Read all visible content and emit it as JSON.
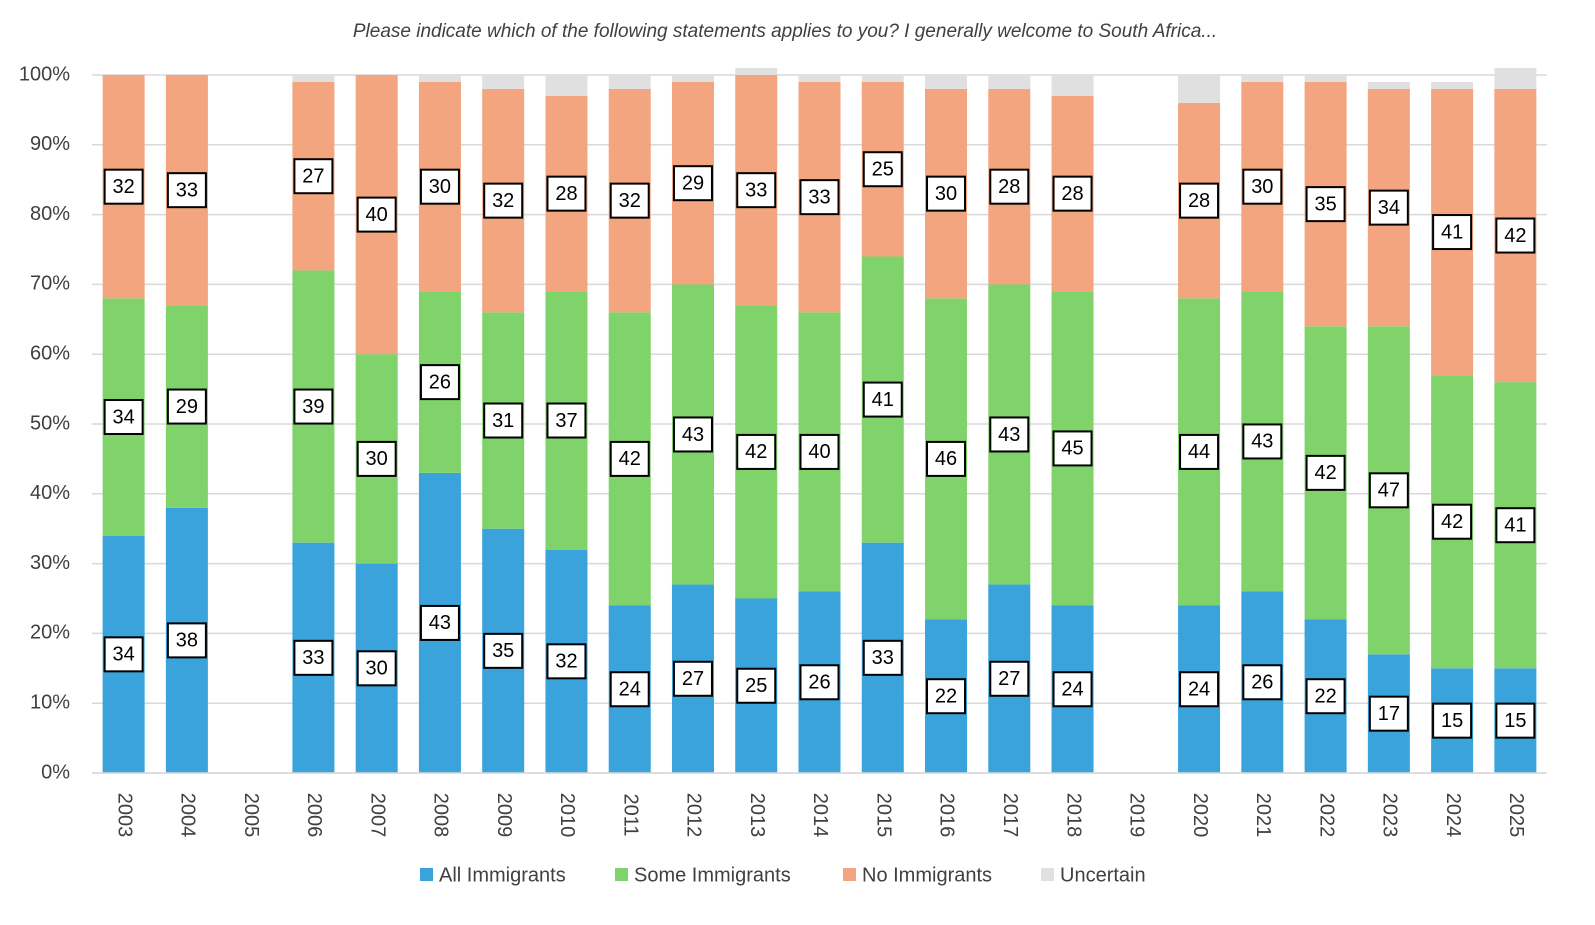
{
  "chart_data": {
    "type": "stacked-bar",
    "title": "Please indicate which of the following statements applies to you? I generally welcome to South Africa...",
    "categories": [
      "2003",
      "2004",
      "2005",
      "2006",
      "2007",
      "2008",
      "2009",
      "2010",
      "2011",
      "2012",
      "2013",
      "2014",
      "2015",
      "2016",
      "2017",
      "2018",
      "2019",
      "2020",
      "2021",
      "2022",
      "2023",
      "2024",
      "2025"
    ],
    "series": [
      {
        "name": "All Immigrants",
        "color": "#3aa3dc",
        "labeled": true,
        "values": [
          34,
          38,
          null,
          33,
          30,
          43,
          35,
          32,
          24,
          27,
          25,
          26,
          33,
          22,
          27,
          24,
          null,
          24,
          26,
          22,
          17,
          15,
          15
        ]
      },
      {
        "name": "Some Immigrants",
        "color": "#7fd36a",
        "labeled": true,
        "values": [
          34,
          29,
          null,
          39,
          30,
          26,
          31,
          37,
          42,
          43,
          42,
          40,
          41,
          46,
          43,
          45,
          null,
          44,
          43,
          42,
          47,
          42,
          41
        ]
      },
      {
        "name": "No Immigrants",
        "color": "#f2a57e",
        "labeled": true,
        "values": [
          32,
          33,
          null,
          27,
          40,
          30,
          32,
          28,
          32,
          29,
          33,
          33,
          25,
          30,
          28,
          28,
          null,
          28,
          30,
          35,
          34,
          41,
          42
        ]
      },
      {
        "name": "Uncertain",
        "color": "#e0e0e0",
        "labeled": false,
        "values": [
          0,
          0,
          null,
          1,
          0,
          1,
          2,
          3,
          2,
          1,
          1,
          1,
          1,
          2,
          2,
          3,
          null,
          4,
          1,
          1,
          1,
          1,
          3
        ]
      }
    ],
    "ylim": [
      0,
      100
    ],
    "yticks": [
      {
        "value": 0,
        "label": "0%"
      },
      {
        "value": 10,
        "label": "10%"
      },
      {
        "value": 20,
        "label": "20%"
      },
      {
        "value": 30,
        "label": "30%"
      },
      {
        "value": 40,
        "label": "40%"
      },
      {
        "value": 50,
        "label": "50%"
      },
      {
        "value": 60,
        "label": "60%"
      },
      {
        "value": 70,
        "label": "70%"
      },
      {
        "value": 80,
        "label": "80%"
      },
      {
        "value": 90,
        "label": "90%"
      },
      {
        "value": 100,
        "label": "100%"
      }
    ],
    "grid": true,
    "legend": "bottom"
  }
}
